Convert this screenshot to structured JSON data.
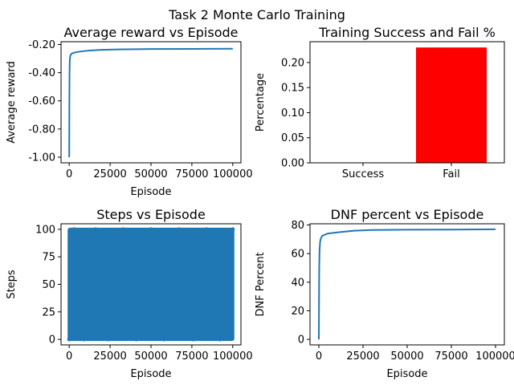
{
  "figure": {
    "suptitle": "Task 2 Monte Carlo Training"
  },
  "chart_data": [
    {
      "type": "line",
      "title": "Average reward vs Episode",
      "xlabel": "Episode",
      "ylabel": "Average reward",
      "xlim": [
        -5000,
        105000
      ],
      "ylim": [
        -1.04,
        -0.18
      ],
      "xticks": [
        0,
        25000,
        50000,
        75000,
        100000
      ],
      "xticklabels": [
        "0",
        "25000",
        "50000",
        "75000",
        "100000"
      ],
      "yticks": [
        -1.0,
        -0.8,
        -0.6,
        -0.4,
        -0.2
      ],
      "yticklabels": [
        "-1.00",
        "-0.80",
        "-0.60",
        "-0.40",
        "-0.20"
      ],
      "color": "#1f77b4",
      "series": [
        {
          "x": [
            0,
            100,
            200,
            300,
            500,
            800,
            1200,
            2000,
            3000,
            5000,
            8000,
            12000,
            20000,
            30000,
            50000,
            75000,
            100000
          ],
          "y": [
            -1.0,
            -0.58,
            -0.4,
            -0.33,
            -0.29,
            -0.275,
            -0.268,
            -0.262,
            -0.258,
            -0.253,
            -0.248,
            -0.243,
            -0.238,
            -0.235,
            -0.232,
            -0.231,
            -0.23
          ]
        }
      ]
    },
    {
      "type": "bar",
      "title": "Training Success and Fail %",
      "xlabel": "",
      "ylabel": "Percentage",
      "categories": [
        "Success",
        "Fail"
      ],
      "values": [
        0.0,
        0.23
      ],
      "colors": [
        "#ff0000",
        "#ff0000"
      ],
      "ylim": [
        0,
        0.2415
      ],
      "yticks": [
        0.0,
        0.05,
        0.1,
        0.15,
        0.2
      ],
      "yticklabels": [
        "0.00",
        "0.05",
        "0.10",
        "0.15",
        "0.20"
      ]
    },
    {
      "type": "scatter",
      "title": "Steps vs Episode",
      "xlabel": "Episode",
      "ylabel": "Steps",
      "xlim": [
        -5000,
        105000
      ],
      "ylim": [
        -5,
        105
      ],
      "xticks": [
        0,
        25000,
        50000,
        75000,
        100000
      ],
      "xticklabels": [
        "0",
        "25000",
        "50000",
        "75000",
        "100000"
      ],
      "yticks": [
        0,
        25,
        50,
        75,
        100
      ],
      "yticklabels": [
        "0",
        "25",
        "50",
        "75",
        "100"
      ],
      "color": "#1f77b4",
      "series": [
        {
          "x_range": [
            0,
            100000
          ],
          "y_range": [
            0,
            100
          ],
          "x": [
            0,
            3000,
            9000,
            16000,
            24000,
            33000,
            41000,
            50000,
            58000,
            67000,
            76000,
            84000,
            92000,
            100000
          ],
          "y": [
            0,
            100,
            0,
            100,
            0,
            100,
            0,
            100,
            0,
            100,
            0,
            100,
            0,
            100
          ]
        }
      ]
    },
    {
      "type": "line",
      "title": "DNF percent vs Episode",
      "xlabel": "Episode",
      "ylabel": "DNF Percent",
      "xlim": [
        -5000,
        105000
      ],
      "ylim": [
        -3.85,
        80.85
      ],
      "xticks": [
        0,
        25000,
        50000,
        75000,
        100000
      ],
      "xticklabels": [
        "0",
        "25000",
        "50000",
        "75000",
        "100000"
      ],
      "yticks": [
        0,
        20,
        40,
        60,
        80
      ],
      "yticklabels": [
        "0",
        "20",
        "40",
        "60",
        "80"
      ],
      "color": "#1f77b4",
      "series": [
        {
          "x": [
            0,
            100,
            200,
            400,
            700,
            1000,
            1500,
            2000,
            3000,
            5000,
            8000,
            12000,
            20000,
            30000,
            50000,
            75000,
            100000
          ],
          "y": [
            0,
            25,
            50,
            62,
            68,
            70,
            71.5,
            72.5,
            73,
            74,
            74.5,
            75,
            76,
            76.5,
            76.7,
            76.8,
            77
          ]
        }
      ]
    }
  ]
}
